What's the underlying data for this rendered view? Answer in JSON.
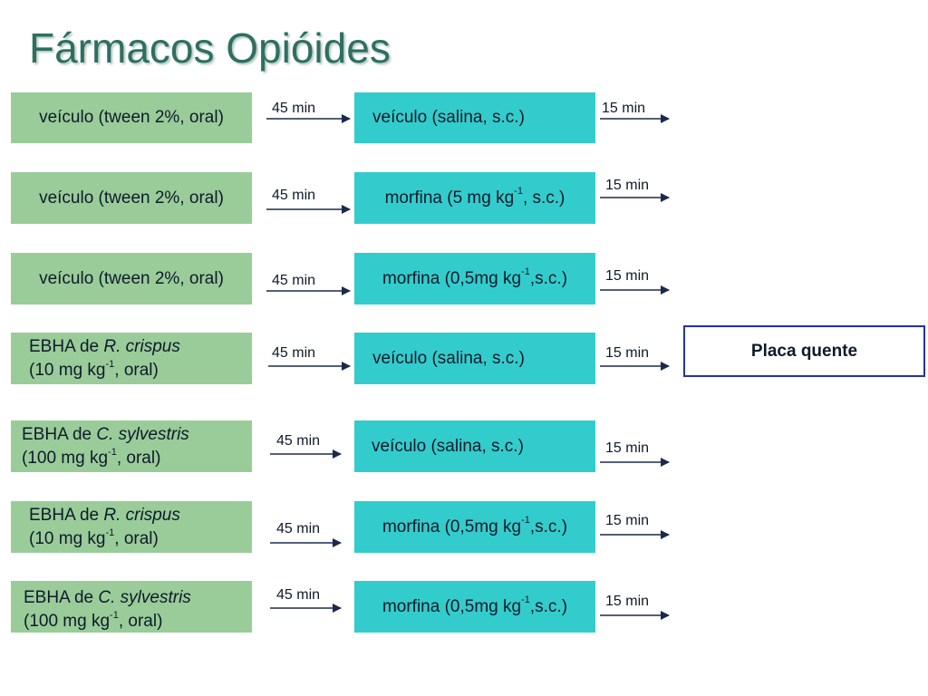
{
  "title": "Fármacos Opióides",
  "rows": [
    {
      "pre": {
        "text": "veículo (tween 2%, oral)"
      },
      "time1": "45 min",
      "treat": {
        "text": "veículo (salina, s.c.)"
      },
      "time2": "15 min"
    },
    {
      "pre": {
        "text": "veículo (tween 2%, oral)"
      },
      "time1": "45 min",
      "treat": {
        "pre_sup": "morfina (5 mg kg",
        "sup": "-1",
        "post_sup": ", s.c.)"
      },
      "time2": "15 min"
    },
    {
      "pre": {
        "text": "veículo (tween 2%, oral)"
      },
      "time1": "45 min",
      "treat": {
        "pre_sup": "morfina (0,5mg kg",
        "sup": "-1",
        "post_sup": ",s.c.)"
      },
      "time2": "15 min"
    },
    {
      "pre": {
        "line1_prefix": "EBHA de ",
        "species": "R. crispus",
        "dose_pre": "(10 mg kg",
        "sup": "-1",
        "dose_post": ", oral)"
      },
      "time1": "45 min",
      "treat": {
        "text": "veículo (salina, s.c.)"
      },
      "time2": "15 min"
    },
    {
      "pre": {
        "line1_prefix": "EBHA de ",
        "species": "C. sylvestris",
        "dose_pre": "(100 mg kg",
        "sup": "-1",
        "dose_post": ", oral)"
      },
      "time1": "45 min",
      "treat": {
        "text": "veículo (salina, s.c.)"
      },
      "time2": "15 min"
    },
    {
      "pre": {
        "line1_prefix": "EBHA de ",
        "species": "R. crispus",
        "dose_pre": "(10 mg kg",
        "sup": "-1",
        "dose_post": ", oral)"
      },
      "time1": "45 min",
      "treat": {
        "pre_sup": "morfina (0,5mg kg",
        "sup": "-1",
        "post_sup": ",s.c.)"
      },
      "time2": "15 min"
    },
    {
      "pre": {
        "line1_prefix": "EBHA de ",
        "species": "C. sylvestris",
        "dose_pre": "(100 mg kg",
        "sup": "-1",
        "dose_post": ", oral)"
      },
      "time1": "45 min",
      "treat": {
        "pre_sup": "morfina (0,5mg kg",
        "sup": "-1",
        "post_sup": ",s.c.)"
      },
      "time2": "15 min"
    }
  ],
  "endpoint": "Placa quente",
  "colors": {
    "pretreatment": "#99cc99",
    "treatment": "#33cccc",
    "title": "#2e6f62",
    "arrow": "#1b2a4a",
    "endpoint_border": "#2233a6"
  }
}
